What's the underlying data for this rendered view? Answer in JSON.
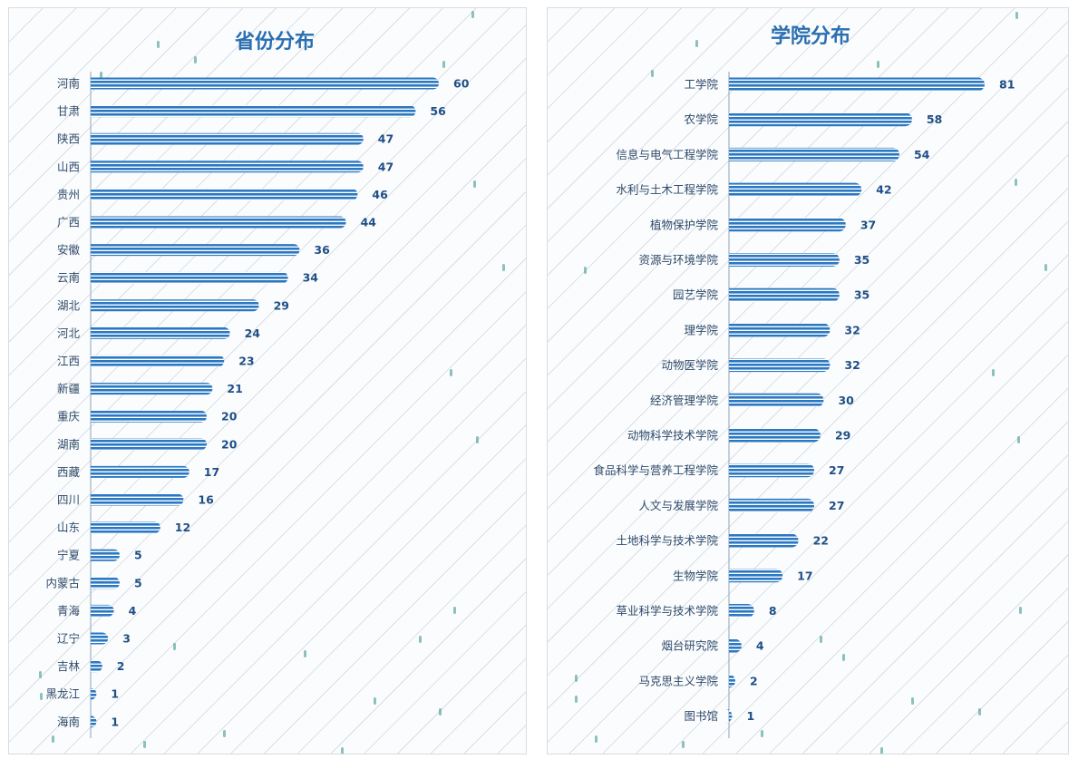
{
  "colors": {
    "bar": "#2b78c2",
    "stripe": "#ffffff",
    "title": "#2a6fb1",
    "value": "#1f4f86",
    "hatch": "#b9c3cc",
    "dot": "#2f8f88"
  },
  "chart_data": [
    {
      "type": "bar",
      "orientation": "horizontal",
      "title": "省份分布",
      "xlim": [
        0,
        60
      ],
      "categories": [
        "河南",
        "甘肃",
        "陕西",
        "山西",
        "贵州",
        "广西",
        "安徽",
        "云南",
        "湖北",
        "河北",
        "江西",
        "新疆",
        "重庆",
        "湖南",
        "西藏",
        "四川",
        "山东",
        "宁夏",
        "内蒙古",
        "青海",
        "辽宁",
        "吉林",
        "黑龙江",
        "海南"
      ],
      "values": [
        60,
        56,
        47,
        47,
        46,
        44,
        36,
        34,
        29,
        24,
        23,
        21,
        20,
        20,
        17,
        16,
        12,
        5,
        5,
        4,
        3,
        2,
        1,
        1
      ]
    },
    {
      "type": "bar",
      "orientation": "horizontal",
      "title": "学院分布",
      "xlim": [
        0,
        81
      ],
      "categories": [
        "工学院",
        "农学院",
        "信息与电气工程学院",
        "水利与土木工程学院",
        "植物保护学院",
        "资源与环境学院",
        "园艺学院",
        "理学院",
        "动物医学院",
        "经济管理学院",
        "动物科学技术学院",
        "食品科学与营养工程学院",
        "人文与发展学院",
        "土地科学与技术学院",
        "生物学院",
        "草业科学与技术学院",
        "烟台研究院",
        "马克思主义学院",
        "图书馆"
      ],
      "values": [
        81,
        58,
        54,
        42,
        37,
        35,
        35,
        32,
        32,
        30,
        29,
        27,
        27,
        22,
        17,
        8,
        4,
        2,
        1
      ]
    }
  ]
}
